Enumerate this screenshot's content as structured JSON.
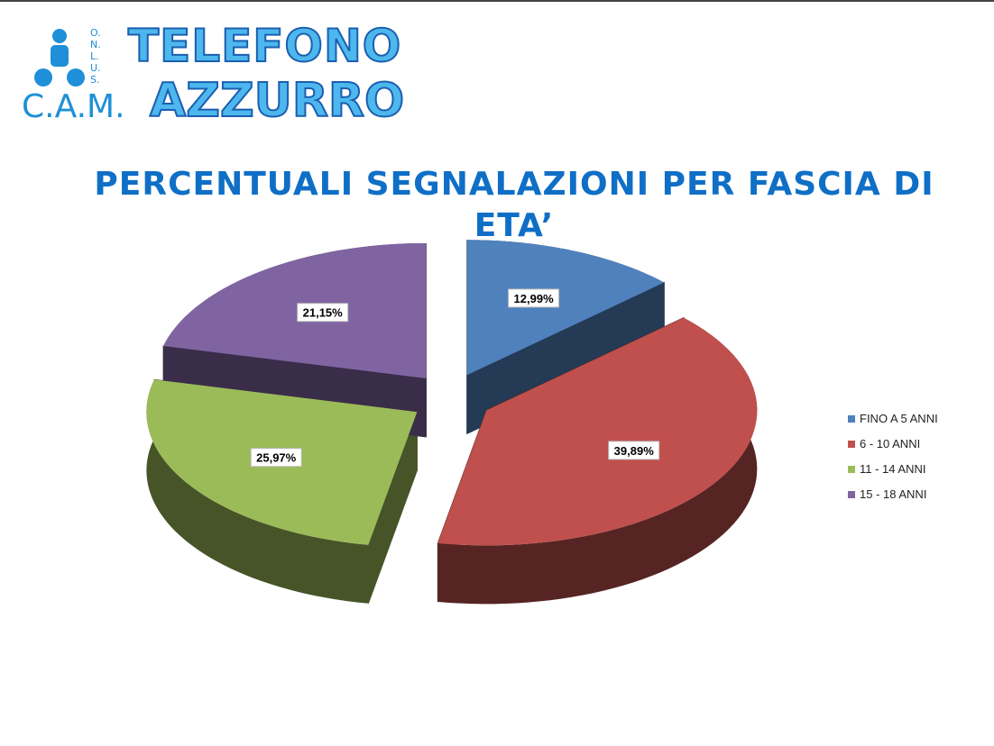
{
  "logo": {
    "org": "C.A.M.",
    "onlus": "O.N.L.U.S.",
    "line1": "TELEFONO",
    "line2": "AZZURRO"
  },
  "chart_data": {
    "type": "pie",
    "title": "PERCENTUALI SEGNALAZIONI PER FASCIA DI ETA’",
    "categories": [
      "FINO A 5 ANNI",
      "6 - 10 ANNI",
      "11 - 14 ANNI",
      "15 - 18 ANNI"
    ],
    "values": [
      12.99,
      39.89,
      25.97,
      21.15
    ],
    "value_labels": [
      "12,99%",
      "39,89%",
      "25,97%",
      "21,15%"
    ],
    "colors": [
      "#4f81bd",
      "#c0504d",
      "#9bbb59",
      "#8064a2"
    ],
    "legend": "right"
  }
}
